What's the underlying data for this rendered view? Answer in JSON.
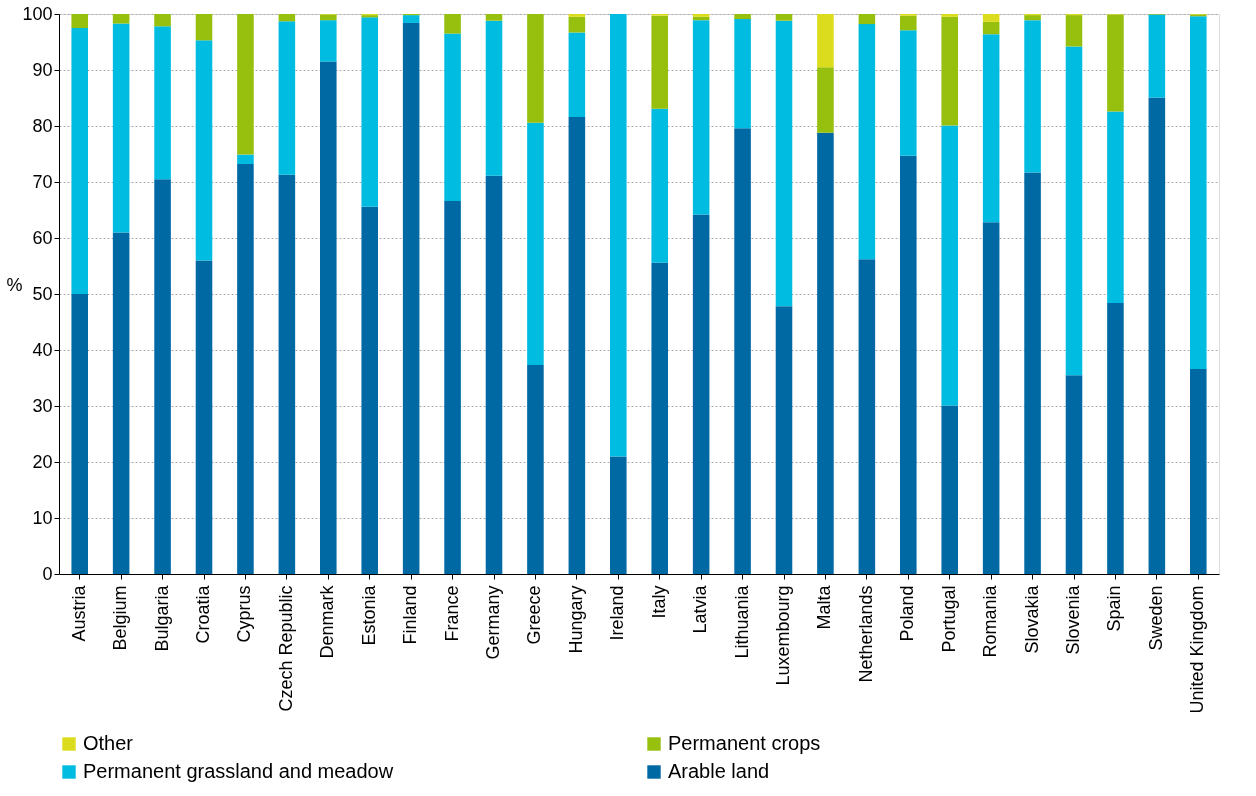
{
  "chart_data": {
    "type": "bar",
    "stacked": true,
    "ylabel": "%",
    "categories": [
      "Austria",
      "Belgium",
      "Bulgaria",
      "Croatia",
      "Cyprus",
      "Czech Republic",
      "Denmark",
      "Estonia",
      "Finland",
      "France",
      "Germany",
      "Greece",
      "Hungary",
      "Ireland",
      "Italy",
      "Latvia",
      "Lithuania",
      "Luxembourg",
      "Malta",
      "Netherlands",
      "Poland",
      "Portugal",
      "Romania",
      "Slovakia",
      "Slovenia",
      "Spain",
      "Sweden",
      "United Kingdom"
    ],
    "series": [
      {
        "name": "Arable land",
        "color": "#0069a4",
        "values": [
          50.0,
          61.0,
          70.5,
          56.0,
          73.2,
          71.3,
          91.5,
          65.6,
          98.4,
          66.6,
          71.1,
          37.3,
          81.6,
          21.0,
          55.6,
          64.2,
          79.6,
          47.8,
          78.8,
          56.2,
          74.7,
          30.1,
          62.8,
          71.7,
          35.5,
          48.4,
          85.1,
          36.6
        ]
      },
      {
        "name": "Permanent grassland and meadow",
        "color": "#00bce1",
        "values": [
          47.5,
          37.3,
          27.3,
          39.3,
          1.7,
          27.4,
          7.4,
          33.8,
          1.4,
          29.9,
          27.7,
          43.3,
          15.1,
          79.0,
          27.5,
          34.7,
          19.5,
          51.0,
          0,
          42.0,
          22.4,
          50.0,
          33.6,
          27.2,
          58.7,
          34.2,
          14.8,
          63.0
        ]
      },
      {
        "name": "Permanent crops",
        "color": "#97bf0d",
        "values": [
          2.5,
          1.7,
          2.2,
          4.7,
          25.1,
          1.3,
          1.0,
          0.4,
          0.2,
          3.5,
          1.2,
          19.4,
          2.8,
          0,
          16.6,
          0.6,
          0.9,
          1.2,
          11.7,
          1.8,
          2.6,
          19.4,
          2.2,
          0.9,
          5.6,
          17.3,
          0.1,
          0.3
        ]
      },
      {
        "name": "Other",
        "color": "#dcdc1e",
        "values": [
          0,
          0,
          0,
          0,
          0,
          0,
          0.1,
          0.2,
          0,
          0,
          0,
          0,
          0.5,
          0,
          0.3,
          0.5,
          0,
          0,
          9.5,
          0,
          0.3,
          0.5,
          1.4,
          0.2,
          0.2,
          0.1,
          0,
          0.1
        ]
      }
    ],
    "ylim": [
      0,
      100
    ],
    "yticks": [
      0,
      10,
      20,
      30,
      40,
      50,
      60,
      70,
      80,
      90,
      100
    ],
    "grid": "y",
    "legend": "bottom"
  }
}
